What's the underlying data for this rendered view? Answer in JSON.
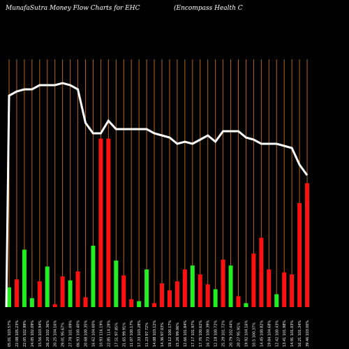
{
  "header": {
    "title_left": "MunafaSutra  Money Flow  Charts for EHC",
    "title_right": "(Encompass Health C"
  },
  "colors": {
    "background": "#000000",
    "grid": "#b8650f",
    "up": "#22ee22",
    "down": "#ff1111",
    "line": "#ffffff",
    "text": "#ffffff"
  },
  "chart_data": {
    "type": "bar",
    "grid": true,
    "title": "MunafaSutra  Money Flow  Charts for EHC",
    "categories": [
      "05.01 103.57%",
      "22.08 105.23%",
      "22.05 102.99%",
      "24.05 102.09%",
      "15.56 103.94%",
      "26.20 102.36%",
      "20.25 104.16%",
      "29.01 95.67%",
      "27.78 101.09%",
      "06.93 100.40%",
      "20.68 100.35%",
      "16.62 104.00%",
      "10.93 116.19%",
      "22.85 114.28%",
      "17.51 97.85%",
      "21.65 99.91%",
      "11.07 100.17%",
      "17.33 103.28%",
      "11.23 97.72%",
      "14.08 103.12%",
      "14.36 97.03%",
      "19.12 100.17%",
      "15.26 99.06%",
      "12.66 101.84%",
      "17.17 101.97%",
      "17.76 100.62%",
      "16.73 100.39%",
      "12.18 100.72%",
      "25.29 101.72%",
      "20.79 102.44%",
      "20.27 95.91%",
      "19.92 104.16%",
      "10.5 100.37%",
      "14.45 100.82%",
      "19.84 104.68%",
      "12.42 100.43%",
      "13.41 101.98%",
      "14.91 101.03%",
      "16.21 101.34%",
      "39.46 103.00%"
    ],
    "colors_sequence": [
      "green",
      "red",
      "green",
      "green",
      "red",
      "green",
      "red",
      "red",
      "green",
      "red",
      "red",
      "green",
      "red",
      "red",
      "green",
      "red",
      "red",
      "green",
      "green",
      "red",
      "red",
      "red",
      "red",
      "red",
      "green",
      "red",
      "red",
      "green",
      "red",
      "green",
      "red",
      "green",
      "red",
      "red",
      "red",
      "green",
      "red",
      "red",
      "red",
      "red"
    ],
    "values": [
      20,
      28,
      58,
      9,
      26,
      41,
      3,
      31,
      27,
      36,
      10,
      62,
      170,
      170,
      47,
      32,
      8,
      6,
      38,
      4,
      24,
      17,
      26,
      38,
      42,
      33,
      23,
      18,
      48,
      42,
      11,
      4,
      54,
      70,
      38,
      13,
      35,
      33,
      105,
      125
    ],
    "line_values": [
      95,
      97,
      98,
      98,
      100,
      100,
      100,
      101,
      100,
      98,
      82,
      77,
      77,
      83,
      79,
      79,
      79,
      79,
      79,
      77,
      76,
      75,
      72,
      73,
      72,
      74,
      76,
      73,
      78,
      78,
      78,
      75,
      74,
      72,
      72,
      72,
      71,
      70,
      62,
      57
    ],
    "ylim": [
      0,
      250
    ]
  }
}
